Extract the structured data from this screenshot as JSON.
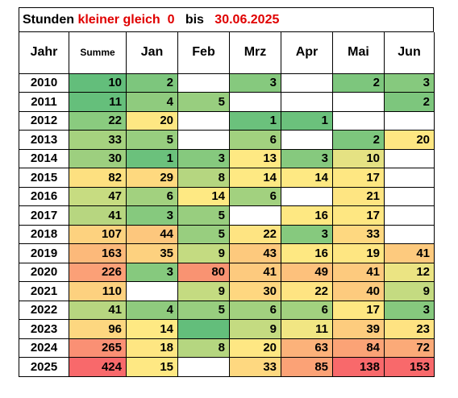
{
  "title": {
    "prefix": "Stunden ",
    "highlight": "kleiner gleich  0",
    "middle": "   bis   ",
    "date": "30.06.2025"
  },
  "headers": [
    "Jahr",
    "Summe",
    "Jan",
    "Feb",
    "Mrz",
    "Apr",
    "Mai",
    "Jun"
  ],
  "rows": [
    {
      "year": "2010",
      "cells": [
        {
          "v": "10",
          "c": "#63be7b"
        },
        {
          "v": "2",
          "c": "#7dc67d"
        },
        {
          "v": "",
          "c": "#ffffff"
        },
        {
          "v": "3",
          "c": "#86c97e"
        },
        {
          "v": "",
          "c": "#ffffff"
        },
        {
          "v": "2",
          "c": "#7dc67d"
        },
        {
          "v": "3",
          "c": "#86c97e"
        }
      ]
    },
    {
      "year": "2011",
      "cells": [
        {
          "v": "11",
          "c": "#65bf7b"
        },
        {
          "v": "4",
          "c": "#8fcb7e"
        },
        {
          "v": "5",
          "c": "#98ce7f"
        },
        {
          "v": "",
          "c": "#ffffff"
        },
        {
          "v": "",
          "c": "#ffffff"
        },
        {
          "v": "",
          "c": "#ffffff"
        },
        {
          "v": "2",
          "c": "#7dc67d"
        }
      ]
    },
    {
      "year": "2012",
      "cells": [
        {
          "v": "22",
          "c": "#8acb7f"
        },
        {
          "v": "20",
          "c": "#fee783"
        },
        {
          "v": "",
          "c": "#ffffff"
        },
        {
          "v": "1",
          "c": "#6bc17c"
        },
        {
          "v": "1",
          "c": "#6bc17c"
        },
        {
          "v": "",
          "c": "#ffffff"
        },
        {
          "v": "",
          "c": "#ffffff"
        }
      ]
    },
    {
      "year": "2013",
      "cells": [
        {
          "v": "33",
          "c": "#a6d27f"
        },
        {
          "v": "5",
          "c": "#98ce7f"
        },
        {
          "v": "",
          "c": "#ffffff"
        },
        {
          "v": "6",
          "c": "#a2d17f"
        },
        {
          "v": "",
          "c": "#ffffff"
        },
        {
          "v": "2",
          "c": "#7dc67d"
        },
        {
          "v": "20",
          "c": "#fee783"
        }
      ]
    },
    {
      "year": "2014",
      "cells": [
        {
          "v": "30",
          "c": "#9dcf7f"
        },
        {
          "v": "1",
          "c": "#6bc17c"
        },
        {
          "v": "3",
          "c": "#86c97e"
        },
        {
          "v": "13",
          "c": "#fee983"
        },
        {
          "v": "3",
          "c": "#86c97e"
        },
        {
          "v": "10",
          "c": "#e5e283"
        },
        {
          "v": "",
          "c": "#ffffff"
        }
      ]
    },
    {
      "year": "2015",
      "cells": [
        {
          "v": "82",
          "c": "#fde080"
        },
        {
          "v": "29",
          "c": "#fed97f"
        },
        {
          "v": "8",
          "c": "#b5d680"
        },
        {
          "v": "14",
          "c": "#fee983"
        },
        {
          "v": "14",
          "c": "#fee983"
        },
        {
          "v": "17",
          "c": "#fee782"
        },
        {
          "v": "",
          "c": "#ffffff"
        }
      ]
    },
    {
      "year": "2016",
      "cells": [
        {
          "v": "47",
          "c": "#c7dc81"
        },
        {
          "v": "6",
          "c": "#a2d17f"
        },
        {
          "v": "14",
          "c": "#fee983"
        },
        {
          "v": "6",
          "c": "#a2d17f"
        },
        {
          "v": "",
          "c": "#ffffff"
        },
        {
          "v": "21",
          "c": "#fee582"
        },
        {
          "v": "",
          "c": "#ffffff"
        }
      ]
    },
    {
      "year": "2017",
      "cells": [
        {
          "v": "41",
          "c": "#b7d680"
        },
        {
          "v": "3",
          "c": "#86c97e"
        },
        {
          "v": "5",
          "c": "#98ce7f"
        },
        {
          "v": "",
          "c": "#ffffff"
        },
        {
          "v": "16",
          "c": "#fee882"
        },
        {
          "v": "17",
          "c": "#fee782"
        },
        {
          "v": "",
          "c": "#ffffff"
        }
      ]
    },
    {
      "year": "2018",
      "cells": [
        {
          "v": "107",
          "c": "#fdd27f"
        },
        {
          "v": "44",
          "c": "#fdc77d"
        },
        {
          "v": "5",
          "c": "#98ce7f"
        },
        {
          "v": "22",
          "c": "#fee482"
        },
        {
          "v": "3",
          "c": "#86c97e"
        },
        {
          "v": "33",
          "c": "#fed880"
        },
        {
          "v": "",
          "c": "#ffffff"
        }
      ]
    },
    {
      "year": "2019",
      "cells": [
        {
          "v": "163",
          "c": "#fcb97a"
        },
        {
          "v": "35",
          "c": "#fdd17f"
        },
        {
          "v": "9",
          "c": "#c4db81"
        },
        {
          "v": "43",
          "c": "#fdc97d"
        },
        {
          "v": "16",
          "c": "#fee882"
        },
        {
          "v": "19",
          "c": "#fee682"
        },
        {
          "v": "41",
          "c": "#fdca7e"
        }
      ]
    },
    {
      "year": "2020",
      "cells": [
        {
          "v": "226",
          "c": "#fba077"
        },
        {
          "v": "3",
          "c": "#86c97e"
        },
        {
          "v": "80",
          "c": "#f99372"
        },
        {
          "v": "41",
          "c": "#fdca7e"
        },
        {
          "v": "49",
          "c": "#fdc17c"
        },
        {
          "v": "41",
          "c": "#fdca7e"
        },
        {
          "v": "12",
          "c": "#ebe483"
        }
      ]
    },
    {
      "year": "2021",
      "cells": [
        {
          "v": "110",
          "c": "#fdd17f"
        },
        {
          "v": "",
          "c": "#ffffff"
        },
        {
          "v": "9",
          "c": "#c4db81"
        },
        {
          "v": "30",
          "c": "#fed780"
        },
        {
          "v": "22",
          "c": "#fee482"
        },
        {
          "v": "40",
          "c": "#fdcb7e"
        },
        {
          "v": "9",
          "c": "#c4db81"
        }
      ]
    },
    {
      "year": "2022",
      "cells": [
        {
          "v": "41",
          "c": "#b7d680"
        },
        {
          "v": "4",
          "c": "#8fcb7e"
        },
        {
          "v": "5",
          "c": "#98ce7f"
        },
        {
          "v": "6",
          "c": "#a2d17f"
        },
        {
          "v": "6",
          "c": "#a2d17f"
        },
        {
          "v": "17",
          "c": "#fee782"
        },
        {
          "v": "3",
          "c": "#86c97e"
        }
      ]
    },
    {
      "year": "2023",
      "cells": [
        {
          "v": "96",
          "c": "#fdd780"
        },
        {
          "v": "14",
          "c": "#fee983"
        },
        {
          "v": "",
          "c": "#63be7b"
        },
        {
          "v": "9",
          "c": "#c4db81"
        },
        {
          "v": "11",
          "c": "#f1e683"
        },
        {
          "v": "39",
          "c": "#fdcc7e"
        },
        {
          "v": "23",
          "c": "#fee382"
        }
      ]
    },
    {
      "year": "2024",
      "cells": [
        {
          "v": "265",
          "c": "#fa9074"
        },
        {
          "v": "18",
          "c": "#fee682"
        },
        {
          "v": "8",
          "c": "#b5d680"
        },
        {
          "v": "20",
          "c": "#fee783"
        },
        {
          "v": "63",
          "c": "#fcb27a"
        },
        {
          "v": "84",
          "c": "#fba376"
        },
        {
          "v": "72",
          "c": "#fbaa78"
        }
      ]
    },
    {
      "year": "2025",
      "cells": [
        {
          "v": "424",
          "c": "#f8696b"
        },
        {
          "v": "15",
          "c": "#fee883"
        },
        {
          "v": "",
          "c": "#ffffff"
        },
        {
          "v": "33",
          "c": "#fed880"
        },
        {
          "v": "85",
          "c": "#fba276"
        },
        {
          "v": "138",
          "c": "#f8696b"
        },
        {
          "v": "153",
          "c": "#f8696b"
        }
      ]
    }
  ]
}
